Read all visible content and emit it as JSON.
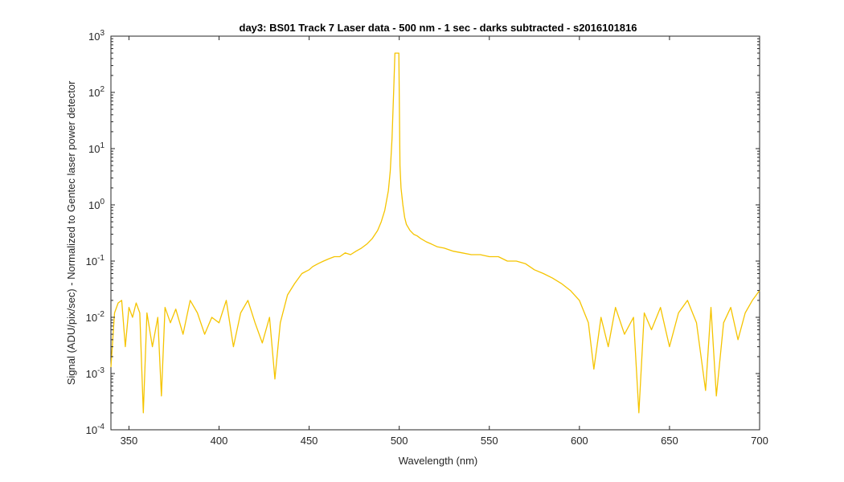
{
  "chart_data": {
    "type": "line",
    "title": "day3: BS01  Track 7 Laser data - 500 nm - 1 sec - darks subtracted - s2016101816",
    "xlabel": "Wavelength (nm)",
    "ylabel": "Signal (ADU/pix/sec) - Normalized to Gentec laser power detector",
    "xlim": [
      340,
      700
    ],
    "ylim": [
      0.0001,
      1000
    ],
    "yscale": "log",
    "grid": false,
    "x_ticks": [
      350,
      400,
      450,
      500,
      550,
      600,
      650,
      700
    ],
    "x_tick_labels": [
      "350",
      "400",
      "450",
      "500",
      "550",
      "600",
      "650",
      "700"
    ],
    "y_ticks": [
      0.0001,
      0.001,
      0.01,
      0.1,
      1,
      10,
      100,
      1000
    ],
    "y_tick_labels": [
      {
        "base": "10",
        "exp": "-4"
      },
      {
        "base": "10",
        "exp": "-3"
      },
      {
        "base": "10",
        "exp": "-2"
      },
      {
        "base": "10",
        "exp": "-1"
      },
      {
        "base": "10",
        "exp": "0"
      },
      {
        "base": "10",
        "exp": "1"
      },
      {
        "base": "10",
        "exp": "2"
      },
      {
        "base": "10",
        "exp": "3"
      }
    ],
    "series": [
      {
        "color": "#f5c400",
        "x": [
          340,
          342,
          344,
          346,
          348,
          350,
          352,
          354,
          356,
          358,
          360,
          363,
          366,
          368,
          370,
          373,
          376,
          380,
          384,
          388,
          392,
          396,
          400,
          404,
          408,
          412,
          416,
          420,
          424,
          428,
          431,
          434,
          438,
          442,
          446,
          450,
          452,
          455,
          458,
          461,
          464,
          467,
          470,
          473,
          476,
          479,
          482,
          485,
          488,
          490,
          492,
          494,
          495,
          496,
          497,
          497.6,
          498,
          498.6,
          499.2,
          499.8,
          500.4,
          501,
          502,
          503,
          504,
          506,
          508,
          510,
          512,
          515,
          518,
          521,
          525,
          530,
          535,
          540,
          545,
          550,
          555,
          560,
          565,
          570,
          575,
          580,
          585,
          590,
          595,
          600,
          605,
          608,
          612,
          616,
          620,
          625,
          630,
          633,
          636,
          640,
          645,
          650,
          655,
          660,
          665,
          670,
          673,
          676,
          680,
          684,
          688,
          692,
          696,
          700
        ],
        "y": [
          0.0013,
          0.012,
          0.018,
          0.02,
          0.003,
          0.015,
          0.01,
          0.018,
          0.012,
          0.0002,
          0.012,
          0.003,
          0.01,
          0.0004,
          0.015,
          0.008,
          0.014,
          0.005,
          0.02,
          0.012,
          0.005,
          0.01,
          0.008,
          0.02,
          0.003,
          0.012,
          0.02,
          0.008,
          0.0035,
          0.01,
          0.0008,
          0.008,
          0.025,
          0.04,
          0.06,
          0.07,
          0.08,
          0.09,
          0.1,
          0.11,
          0.12,
          0.12,
          0.14,
          0.13,
          0.15,
          0.17,
          0.2,
          0.25,
          0.35,
          0.5,
          0.8,
          1.8,
          4,
          15,
          120,
          500,
          500,
          500,
          500,
          500,
          5,
          2,
          1,
          0.6,
          0.45,
          0.35,
          0.3,
          0.28,
          0.25,
          0.22,
          0.2,
          0.18,
          0.17,
          0.15,
          0.14,
          0.13,
          0.13,
          0.12,
          0.12,
          0.1,
          0.1,
          0.09,
          0.07,
          0.06,
          0.05,
          0.04,
          0.03,
          0.02,
          0.008,
          0.0012,
          0.01,
          0.003,
          0.015,
          0.005,
          0.01,
          0.0002,
          0.012,
          0.006,
          0.015,
          0.003,
          0.012,
          0.02,
          0.008,
          0.0005,
          0.015,
          0.0004,
          0.008,
          0.015,
          0.004,
          0.012,
          0.02,
          0.03
        ]
      }
    ]
  }
}
